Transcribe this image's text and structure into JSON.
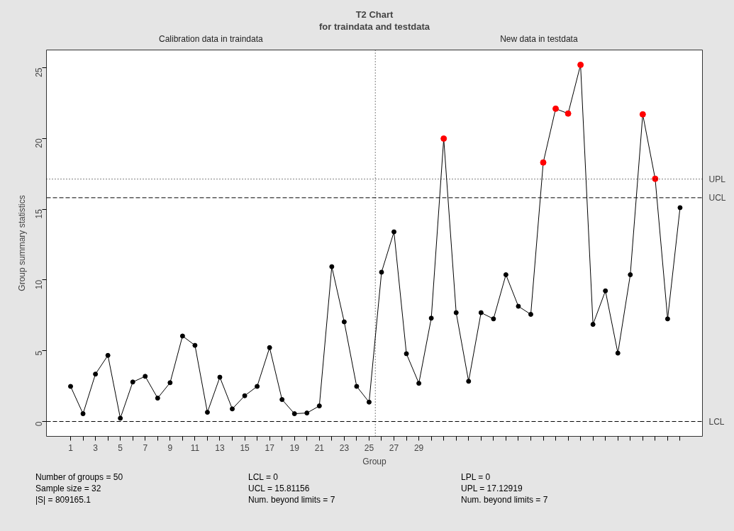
{
  "chart_data": {
    "type": "line",
    "title": "T2 Chart",
    "subtitle": "for traindata and testdata",
    "xlabel": "Group",
    "ylabel": "Group summary statistics",
    "x": [
      1,
      2,
      3,
      4,
      5,
      6,
      7,
      8,
      9,
      10,
      11,
      12,
      13,
      14,
      15,
      16,
      17,
      18,
      19,
      20,
      21,
      22,
      23,
      24,
      25,
      26,
      27,
      28,
      29,
      30,
      31,
      32,
      33,
      34,
      35,
      36,
      37,
      38,
      39,
      40,
      41,
      42,
      43,
      44,
      45,
      46,
      47,
      48,
      49,
      50
    ],
    "series": [
      {
        "color": "#000000",
        "values": [
          2.48,
          0.55,
          3.35,
          4.67,
          0.23,
          2.79,
          3.19,
          1.65,
          2.74,
          6.04,
          5.38,
          0.65,
          3.13,
          0.89,
          1.82,
          2.48,
          5.22,
          1.55,
          0.55,
          0.6,
          1.1,
          10.94,
          7.04,
          2.48,
          1.37,
          10.55,
          13.4,
          4.79,
          2.7,
          7.3,
          19.99,
          7.69,
          2.84,
          7.69,
          7.25,
          10.37,
          8.14,
          7.57,
          18.3,
          22.1,
          21.76,
          25.2,
          6.86,
          9.23,
          4.83,
          10.37,
          21.7,
          17.15,
          7.25,
          15.11
        ],
        "colors": [
          "#000000",
          "#000000",
          "#000000",
          "#000000",
          "#000000",
          "#000000",
          "#000000",
          "#000000",
          "#000000",
          "#000000",
          "#000000",
          "#000000",
          "#000000",
          "#000000",
          "#000000",
          "#000000",
          "#000000",
          "#000000",
          "#000000",
          "#000000",
          "#000000",
          "#000000",
          "#000000",
          "#000000",
          "#000000",
          "#000000",
          "#000000",
          "#000000",
          "#000000",
          "#000000",
          "#ff0000",
          "#000000",
          "#000000",
          "#000000",
          "#000000",
          "#000000",
          "#000000",
          "#000000",
          "#ff0000",
          "#ff0000",
          "#ff0000",
          "#ff0000",
          "#000000",
          "#000000",
          "#000000",
          "#000000",
          "#ff0000",
          "#ff0000",
          "#000000",
          "#000000"
        ]
      }
    ],
    "marker": "circle",
    "line_style": "solid",
    "grid": false,
    "xlim": [
      -0.94,
      51.8
    ],
    "ylim": [
      -1.05,
      26.25
    ],
    "yticks": [
      0,
      5,
      10,
      15,
      20,
      25
    ],
    "xticks": [
      1,
      {
        "value": 2,
        "label": null
      },
      3,
      {
        "value": 4,
        "label": null
      },
      5,
      {
        "value": 6,
        "label": null
      },
      7,
      {
        "value": 8,
        "label": null
      },
      9,
      {
        "value": 10,
        "label": null
      },
      11,
      {
        "value": 12,
        "label": null
      },
      13,
      {
        "value": 14,
        "label": null
      },
      15,
      {
        "value": 16,
        "label": null
      },
      17,
      {
        "value": 18,
        "label": null
      },
      19,
      {
        "value": 20,
        "label": null
      },
      21,
      {
        "value": 22,
        "label": null
      },
      23,
      {
        "value": 24,
        "label": null
      },
      25,
      {
        "value": 26,
        "label": null
      },
      27,
      {
        "value": 28,
        "label": null
      },
      29,
      {
        "value": 30,
        "label": null
      },
      {
        "value": 31,
        "label": null
      },
      {
        "value": 32,
        "label": null
      },
      {
        "value": 33,
        "label": null
      },
      {
        "value": 34,
        "label": null
      },
      {
        "value": 35,
        "label": null
      },
      {
        "value": 36,
        "label": null
      },
      {
        "value": 37,
        "label": null
      },
      {
        "value": 38,
        "label": null
      },
      {
        "value": 39,
        "label": null
      },
      {
        "value": 40,
        "label": null
      },
      {
        "value": 41,
        "label": null
      },
      {
        "value": 42,
        "label": null
      },
      {
        "value": 43,
        "label": null
      },
      {
        "value": 44,
        "label": null
      },
      {
        "value": 45,
        "label": null
      },
      {
        "value": 46,
        "label": null
      },
      {
        "value": 47,
        "label": null
      },
      {
        "value": 48,
        "label": null
      },
      {
        "value": 49,
        "label": null
      },
      {
        "value": 50,
        "label": null
      }
    ],
    "ref_lines": [
      {
        "axis": "y",
        "value": 17.12919,
        "label": "UPL",
        "line_style": "dotted"
      },
      {
        "axis": "y",
        "value": 15.81156,
        "label": "UCL",
        "line_style": "dashed"
      },
      {
        "axis": "y",
        "value": 0,
        "label": "LCL",
        "line_style": "dashed"
      },
      {
        "axis": "x",
        "value": 25.5,
        "line_style": "dotted"
      }
    ],
    "annotations": [
      "Calibration data in traindata",
      "New data in testdata",
      "Number of groups = 50",
      "Sample size = 32",
      "|S| = 809165.1",
      "LCL = 0",
      "UCL = 15.81156",
      "Num. beyond limits = 7",
      "LPL = 0",
      "UPL = 17.12919",
      "Num. beyond limits = 7"
    ]
  }
}
